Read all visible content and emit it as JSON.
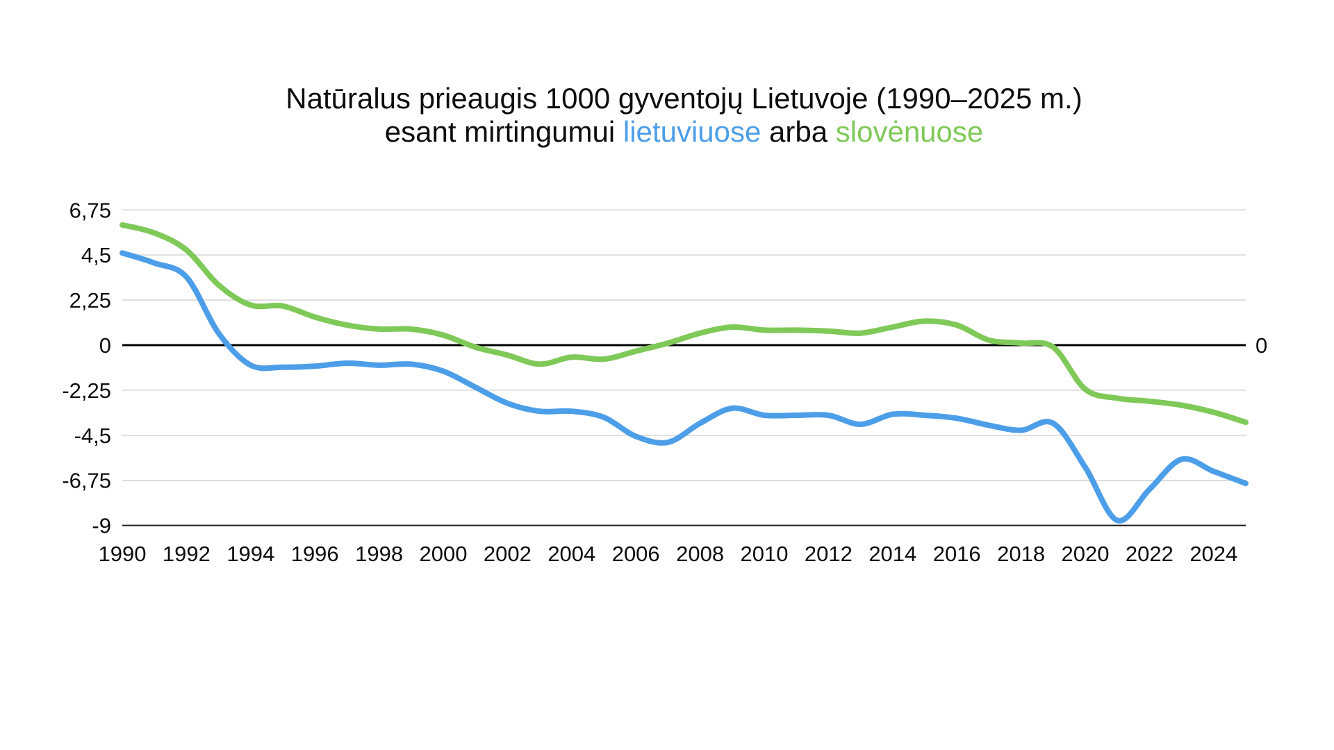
{
  "title": {
    "line1": "Natūralus prieaugis 1000 gyventojų Lietuvoje (1990–2025 m.)",
    "line2_prefix": "esant mirtingumui ",
    "line2_blue": "lietuviuose",
    "line2_mid": " arba ",
    "line2_green": "slovėnuose"
  },
  "colors": {
    "blue": "#4D9EE8",
    "green": "#7EC958",
    "grid": "#D4D4D4",
    "zero_line": "#000000",
    "axis_line": "#1A1A1A",
    "text": "#0D0D0D",
    "background": "#FFFFFF"
  },
  "axes": {
    "y_tick_labels": [
      "6,75",
      "4,5",
      "2,25",
      "0",
      "-2,25",
      "-4,5",
      "-6,75",
      "-9"
    ],
    "y_tick_values": [
      6.75,
      4.5,
      2.25,
      0,
      -2.25,
      -4.5,
      -6.75,
      -9
    ],
    "x_tick_labels": [
      "1990",
      "1992",
      "1994",
      "1996",
      "1998",
      "2000",
      "2002",
      "2004",
      "2006",
      "2008",
      "2010",
      "2012",
      "2014",
      "2016",
      "2018",
      "2020",
      "2022",
      "2024"
    ],
    "x_tick_values": [
      1990,
      1992,
      1994,
      1996,
      1998,
      2000,
      2002,
      2004,
      2006,
      2008,
      2010,
      2012,
      2014,
      2016,
      2018,
      2020,
      2022,
      2024
    ],
    "right_zero_label": "0"
  },
  "chart_data": {
    "type": "line",
    "title": "Natūralus prieaugis 1000 gyventojų Lietuvoje (1990–2025 m.) esant mirtingumui lietuviuose arba slovėnuose",
    "xlabel": "",
    "ylabel": "",
    "xlim": [
      1990,
      2025
    ],
    "ylim": [
      -9,
      6.75
    ],
    "grid": "horizontal",
    "zero_line": true,
    "legend_position": "in-title",
    "x": [
      1990,
      1991,
      1992,
      1993,
      1994,
      1995,
      1996,
      1997,
      1998,
      1999,
      2000,
      2001,
      2002,
      2003,
      2004,
      2005,
      2006,
      2007,
      2008,
      2009,
      2010,
      2011,
      2012,
      2013,
      2014,
      2015,
      2016,
      2017,
      2018,
      2019,
      2020,
      2021,
      2022,
      2023,
      2024,
      2025
    ],
    "series": [
      {
        "name": "lietuviuose",
        "color": "#4D9EE8",
        "values": [
          4.6,
          4.1,
          3.4,
          0.6,
          -1.0,
          -1.1,
          -1.05,
          -0.9,
          -1.0,
          -0.95,
          -1.3,
          -2.1,
          -2.9,
          -3.3,
          -3.3,
          -3.6,
          -4.55,
          -4.85,
          -3.9,
          -3.15,
          -3.5,
          -3.5,
          -3.5,
          -3.95,
          -3.45,
          -3.5,
          -3.65,
          -4.0,
          -4.25,
          -3.9,
          -6.1,
          -8.75,
          -7.2,
          -5.7,
          -6.3,
          -6.9
        ]
      },
      {
        "name": "slovėnuose",
        "color": "#7EC958",
        "values": [
          6.0,
          5.6,
          4.75,
          3.0,
          2.0,
          1.95,
          1.4,
          1.0,
          0.8,
          0.8,
          0.5,
          -0.1,
          -0.5,
          -0.95,
          -0.6,
          -0.7,
          -0.3,
          0.1,
          0.6,
          0.9,
          0.75,
          0.75,
          0.7,
          0.6,
          0.9,
          1.2,
          1.0,
          0.25,
          0.1,
          -0.1,
          -2.2,
          -2.65,
          -2.8,
          -3.0,
          -3.35,
          -3.85
        ]
      }
    ]
  }
}
